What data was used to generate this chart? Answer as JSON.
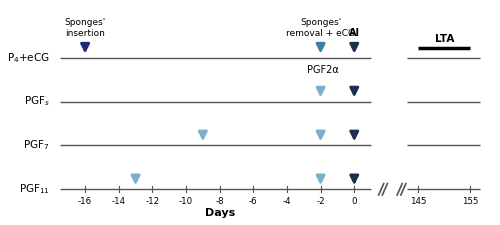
{
  "rows": [
    {
      "label": "P$_4$+eCG",
      "y": 3
    },
    {
      "label": "PGF$_s$",
      "y": 2
    },
    {
      "label": "PGF$_7$",
      "y": 1
    },
    {
      "label": "PGF$_{11}$",
      "y": 0
    }
  ],
  "arrows": [
    {
      "row": 3,
      "x": -16,
      "color": "#1b2a7b"
    },
    {
      "row": 3,
      "x": -2,
      "color": "#3a7fa0"
    },
    {
      "row": 3,
      "x": 0,
      "color": "#1b2f50"
    },
    {
      "row": 2,
      "x": -2,
      "color": "#7ab0c8"
    },
    {
      "row": 2,
      "x": 0,
      "color": "#1b2f50"
    },
    {
      "row": 1,
      "x": -9,
      "color": "#7ab0c8"
    },
    {
      "row": 1,
      "x": -2,
      "color": "#7ab0c8"
    },
    {
      "row": 1,
      "x": 0,
      "color": "#1b2f50"
    },
    {
      "row": 0,
      "x": -13,
      "color": "#7ab0c8"
    },
    {
      "row": 0,
      "x": -2,
      "color": "#7ab0c8"
    },
    {
      "row": 0,
      "x": 0,
      "color": "#1b2f50"
    }
  ],
  "line_color": "#555555",
  "xticks_left": [
    -16,
    -14,
    -12,
    -10,
    -8,
    -6,
    -4,
    -2,
    0
  ],
  "xticks_right": [
    145,
    155
  ],
  "xlabel": "Days",
  "background_color": "#ffffff",
  "lta_label": "LTA",
  "annotation_sponges_insertion": "Sponges'\ninsertion",
  "annotation_sponges_removal": "Sponges'\nremoval + eCG",
  "annotation_ai": "AI",
  "annotation_pgf2a": "PGF2α"
}
